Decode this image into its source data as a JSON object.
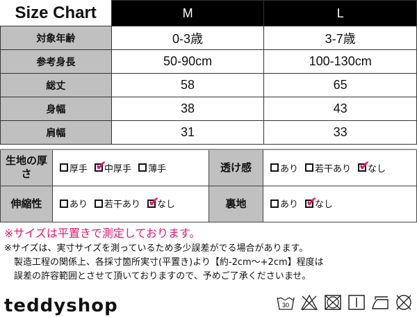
{
  "size_chart": {
    "title": "Size Chart",
    "sizes": [
      "M",
      "L"
    ],
    "rows": [
      {
        "label": "対象年齢",
        "values": [
          "0-3歳",
          "3-7歳"
        ]
      },
      {
        "label": "参考身長",
        "values": [
          "50-90cm",
          "100-130cm"
        ]
      },
      {
        "label": "総丈",
        "values": [
          "58",
          "65"
        ]
      },
      {
        "label": "身幅",
        "values": [
          "38",
          "43"
        ]
      },
      {
        "label": "肩幅",
        "values": [
          "31",
          "33"
        ]
      }
    ]
  },
  "features": {
    "thickness": {
      "label": "生地の厚さ",
      "options": [
        {
          "text": "厚手",
          "checked": false
        },
        {
          "text": "中厚手",
          "checked": true
        },
        {
          "text": "薄手",
          "checked": false
        }
      ]
    },
    "sheerness": {
      "label": "透け感",
      "options": [
        {
          "text": "あり",
          "checked": false
        },
        {
          "text": "若干あり",
          "checked": false
        },
        {
          "text": "なし",
          "checked": true
        }
      ]
    },
    "stretch": {
      "label": "伸縮性",
      "options": [
        {
          "text": "あり",
          "checked": false
        },
        {
          "text": "若干あり",
          "checked": false
        },
        {
          "text": "なし",
          "checked": true
        }
      ]
    },
    "lining": {
      "label": "裏地",
      "options": [
        {
          "text": "あり",
          "checked": false
        },
        {
          "text": "なし",
          "checked": true
        }
      ]
    }
  },
  "notes": {
    "highlight": "※サイズは平置きで測定しております。",
    "line1": "※サイズは、実寸サイズを測っているため多少誤差がでる場合があります。",
    "line2": "製造工程の関係上、各採寸箇所実寸(平置き)より【約-2cm〜+2cm】程度は",
    "line3": "誤差の許容範囲とさせて頂いておりますので、予めご了承くださいませ。"
  },
  "brand": {
    "logo": "teddyshop"
  },
  "care_icons": {
    "wash_temp": "30",
    "icons": [
      "wash-30-icon",
      "no-bleach-icon",
      "no-tumble-dry-icon",
      "line-dry-icon",
      "iron-low-icon",
      "no-dry-clean-icon"
    ]
  },
  "colors": {
    "accent": "#e8186e",
    "label_bg": "#c0c0c0",
    "header_bg": "#000000"
  }
}
